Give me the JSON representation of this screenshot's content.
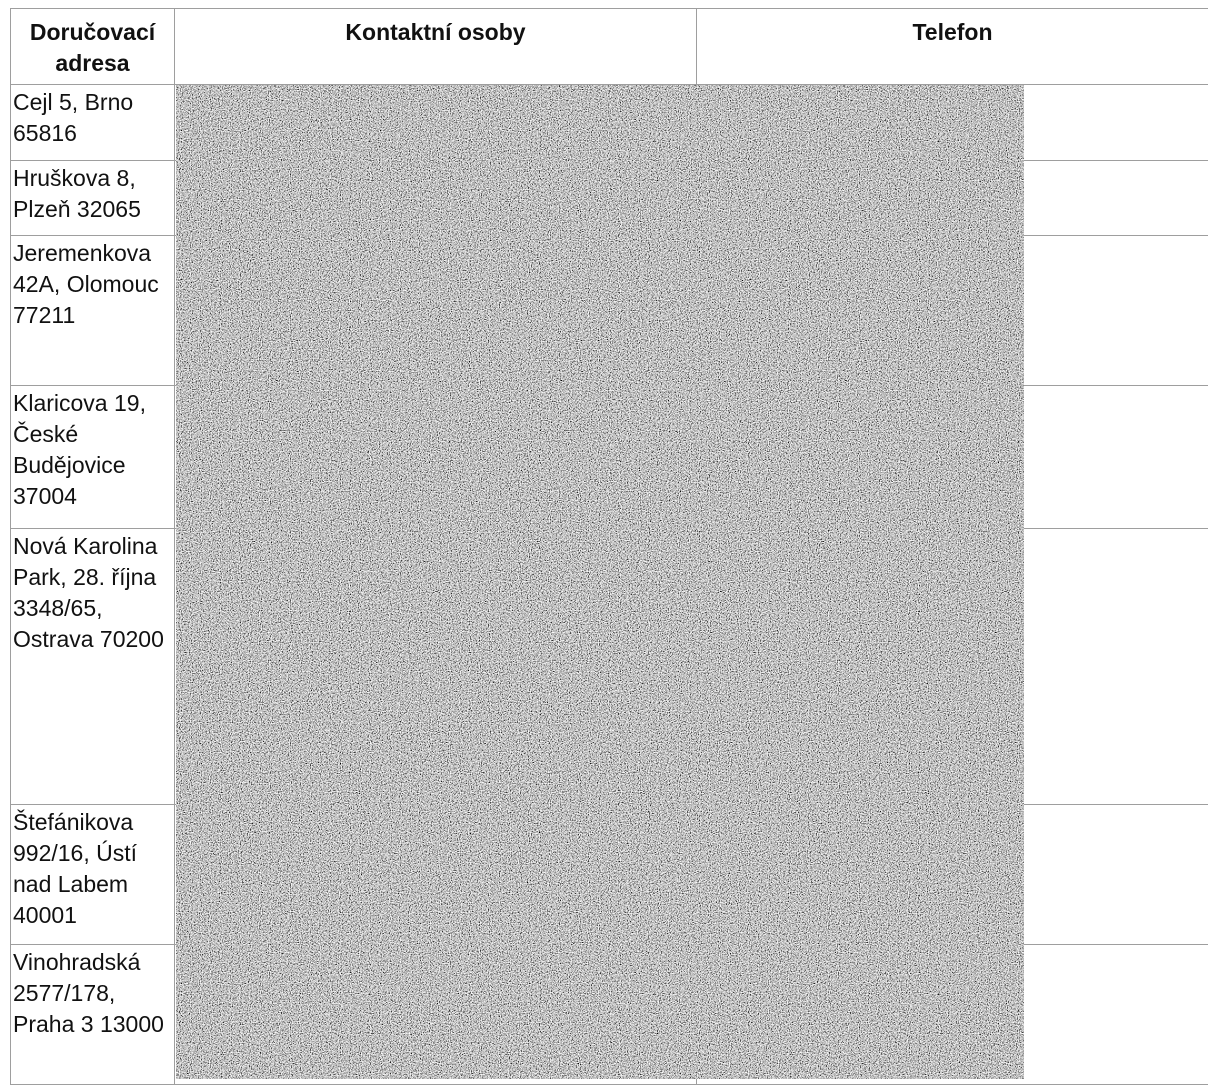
{
  "table": {
    "headers": {
      "address": "Doručovací adresa",
      "contacts": "Kontaktní osoby",
      "phone": "Telefon"
    },
    "rows": [
      {
        "address": "Cejl 5, Brno 65816"
      },
      {
        "address": "Hruškova 8, Plzeň 32065"
      },
      {
        "address": "Jeremenkova 42A, Olomouc 77211"
      },
      {
        "address": "Klaricova 19, České Budějovice 37004"
      },
      {
        "address": "Nová Karolina Park, 28. října 3348/65, Ostrava 70200"
      },
      {
        "address": "Štefánikova 992/16, Ústí nad Labem 40001"
      },
      {
        "address": "Vinohradská 2577/178, Praha 3 13000"
      }
    ]
  },
  "overlay": {
    "type": "noise-redaction",
    "color_light": "#ffffff",
    "color_dark": "#000000"
  }
}
